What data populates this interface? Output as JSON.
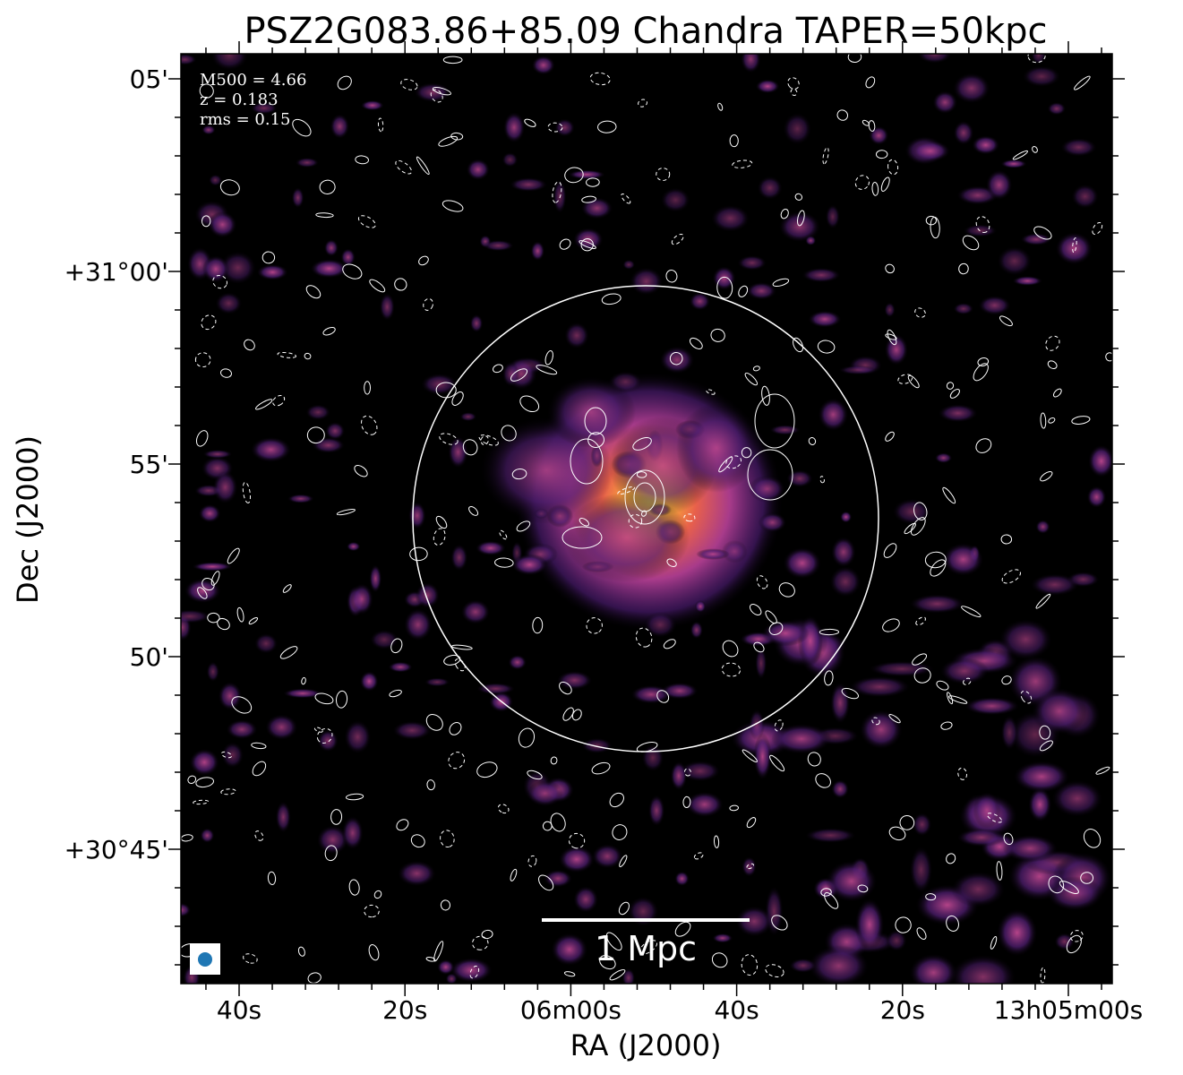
{
  "title": "PSZ2G083.86+85.09 Chandra TAPER=50kpc",
  "x_axis": {
    "label": "RA (J2000)",
    "tick_labels": [
      "40s",
      "20s",
      "06m00s",
      "40s",
      "20s",
      "13h05m00s"
    ]
  },
  "y_axis": {
    "label": "Dec (J2000)",
    "tick_labels": [
      "05'",
      "+31°00'",
      "55'",
      "50'",
      "+30°45'"
    ]
  },
  "annotations": [
    "M500 = 4.66",
    "z = 0.183",
    "rms = 0.15"
  ],
  "scale_bar": "1 Mpc"
}
